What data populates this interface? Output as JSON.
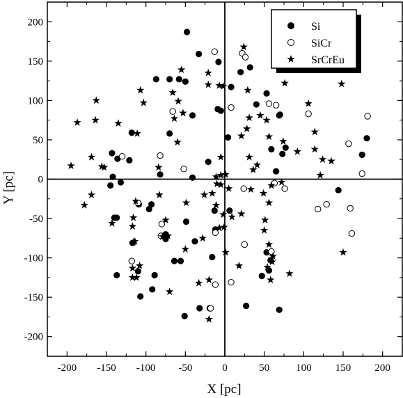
{
  "chart_data": {
    "type": "scatter",
    "title": "",
    "xlabel": "X [pc]",
    "ylabel": "Y [pc]",
    "xlim": [
      -225,
      225
    ],
    "ylim": [
      -225,
      225
    ],
    "xticks": [
      -200,
      -150,
      -100,
      -50,
      0,
      50,
      100,
      150,
      200
    ],
    "yticks": [
      -200,
      -150,
      -100,
      -50,
      0,
      50,
      100,
      150,
      200
    ],
    "xtick_labels": [
      "-200",
      "-150",
      "-100",
      "-50",
      "0",
      "50",
      "100",
      "150",
      "200"
    ],
    "ytick_labels": [
      "-200",
      "-150",
      "-100",
      "-50",
      "0",
      "50",
      "100",
      "150",
      "200"
    ],
    "zero_lines": true,
    "grid": false,
    "legend_position": "top-right",
    "series": [
      {
        "name": "Si",
        "marker": "filled-circle",
        "points": [
          [
            -48,
            187
          ],
          [
            -33,
            159
          ],
          [
            -8,
            149
          ],
          [
            32,
            142
          ],
          [
            20,
            136
          ],
          [
            -70,
            127
          ],
          [
            -87,
            127
          ],
          [
            -58,
            127
          ],
          [
            -50,
            124
          ],
          [
            8,
            117
          ],
          [
            53,
            109
          ],
          [
            -41,
            81
          ],
          [
            -5,
            87
          ],
          [
            40,
            95
          ],
          [
            70,
            82
          ],
          [
            69,
            81
          ],
          [
            -118,
            59
          ],
          [
            -70,
            58
          ],
          [
            -9,
            89
          ],
          [
            4,
            53
          ],
          [
            77,
            40
          ],
          [
            73,
            32
          ],
          [
            59,
            38
          ],
          [
            -143,
            33
          ],
          [
            -136,
            26
          ],
          [
            -121,
            24
          ],
          [
            -142,
            3
          ],
          [
            -132,
            -4
          ],
          [
            -145,
            -8
          ],
          [
            -82,
            6
          ],
          [
            -41,
            2
          ],
          [
            -21,
            22
          ],
          [
            65,
            10
          ],
          [
            -140,
            -49
          ],
          [
            -137,
            -49
          ],
          [
            -109,
            -32
          ],
          [
            -96,
            -38
          ],
          [
            -93,
            -32
          ],
          [
            -75,
            -70
          ],
          [
            -75,
            -76
          ],
          [
            -64,
            -104
          ],
          [
            -56,
            -104
          ],
          [
            -49,
            -54
          ],
          [
            -38,
            -79
          ],
          [
            -13,
            -40
          ],
          [
            -12,
            -64
          ],
          [
            -16,
            -99
          ],
          [
            6,
            -40
          ],
          [
            53,
            -93
          ],
          [
            -117,
            -81
          ],
          [
            -110,
            -117
          ],
          [
            -137,
            -122
          ],
          [
            -89,
            -122
          ],
          [
            -92,
            -140
          ],
          [
            -107,
            -149
          ],
          [
            -51,
            -174
          ],
          [
            -32,
            -164
          ],
          [
            27,
            -161
          ],
          [
            69,
            -166
          ],
          [
            47,
            -123
          ],
          [
            56,
            -116
          ],
          [
            58,
            -103
          ],
          [
            144,
            -14
          ],
          [
            180,
            52
          ],
          [
            174,
            31
          ]
        ]
      },
      {
        "name": "SiCr",
        "marker": "open-circle",
        "points": [
          [
            -13,
            162
          ],
          [
            22,
            160
          ],
          [
            26,
            155
          ],
          [
            -66,
            86
          ],
          [
            8,
            91
          ],
          [
            -82,
            30
          ],
          [
            -130,
            29
          ],
          [
            56,
            96
          ],
          [
            65,
            94
          ],
          [
            106,
            83
          ],
          [
            157,
            45
          ],
          [
            181,
            80
          ],
          [
            -52,
            13
          ],
          [
            -110,
            -30
          ],
          [
            -80,
            -57
          ],
          [
            -81,
            -72
          ],
          [
            -12,
            -68
          ],
          [
            25,
            -83
          ],
          [
            59,
            -92
          ],
          [
            -118,
            -104
          ],
          [
            -12,
            -134
          ],
          [
            8,
            -131
          ],
          [
            -19,
            -164
          ],
          [
            -18,
            -164
          ],
          [
            76,
            -12
          ],
          [
            63,
            -5
          ],
          [
            24,
            -12
          ],
          [
            118,
            -38
          ],
          [
            129,
            -32
          ],
          [
            159,
            -37
          ],
          [
            161,
            -69
          ],
          [
            174,
            7
          ]
        ]
      },
      {
        "name": "SrCrEu",
        "marker": "star",
        "points": [
          [
            24,
            168
          ],
          [
            -55,
            139
          ],
          [
            -21,
            135
          ],
          [
            -66,
            110
          ],
          [
            -21,
            120
          ],
          [
            -7,
            119
          ],
          [
            -2,
            118
          ],
          [
            29,
            113
          ],
          [
            76,
            122
          ],
          [
            148,
            121
          ],
          [
            -107,
            113
          ],
          [
            -103,
            97
          ],
          [
            -59,
            99
          ],
          [
            -163,
            100
          ],
          [
            -187,
            72
          ],
          [
            -135,
            71
          ],
          [
            -164,
            75
          ],
          [
            -156,
            16
          ],
          [
            -111,
            58
          ],
          [
            -53,
            84
          ],
          [
            -64,
            77
          ],
          [
            -60,
            47
          ],
          [
            -195,
            17
          ],
          [
            -169,
            28
          ],
          [
            -153,
            15
          ],
          [
            -84,
            15
          ],
          [
            -5,
            28
          ],
          [
            21,
            55
          ],
          [
            28,
            64
          ],
          [
            31,
            78
          ],
          [
            45,
            81
          ],
          [
            53,
            75
          ],
          [
            56,
            54
          ],
          [
            74,
            48
          ],
          [
            106,
            96
          ],
          [
            114,
            60
          ],
          [
            114,
            38
          ],
          [
            124,
            25
          ],
          [
            135,
            23
          ],
          [
            121,
            5
          ],
          [
            31,
            28
          ],
          [
            36,
            12
          ],
          [
            41,
            18
          ],
          [
            1,
            6
          ],
          [
            -11,
            3
          ],
          [
            -5,
            5
          ],
          [
            5,
            -12
          ],
          [
            -26,
            -20
          ],
          [
            -49,
            -30
          ],
          [
            -28,
            -75
          ],
          [
            -16,
            -18
          ],
          [
            -2,
            -45
          ],
          [
            -1,
            -61
          ],
          [
            21,
            -44
          ],
          [
            9,
            -48
          ],
          [
            33,
            -13
          ],
          [
            49,
            -18
          ],
          [
            56,
            -30
          ],
          [
            51,
            -52
          ],
          [
            50,
            -65
          ],
          [
            56,
            -83
          ],
          [
            61,
            -98
          ],
          [
            54,
            -112
          ],
          [
            60,
            -105
          ],
          [
            58,
            -128
          ],
          [
            82,
            -120
          ],
          [
            150,
            -93
          ],
          [
            59,
            -8
          ],
          [
            72,
            -4
          ],
          [
            92,
            35
          ],
          [
            -178,
            -33
          ],
          [
            -169,
            -20
          ],
          [
            -143,
            -56
          ],
          [
            -116,
            -49
          ],
          [
            -113,
            -28
          ],
          [
            -117,
            -60
          ],
          [
            -116,
            -80
          ],
          [
            -114,
            -79
          ],
          [
            -117,
            -125
          ],
          [
            -117,
            -113
          ],
          [
            -112,
            -125
          ],
          [
            -108,
            -110
          ],
          [
            -75,
            -52
          ],
          [
            -79,
            -73
          ],
          [
            -83,
            -20
          ],
          [
            -72,
            -72
          ],
          [
            -50,
            -89
          ],
          [
            -33,
            -132
          ],
          [
            -20,
            -178
          ],
          [
            -20,
            -128
          ],
          [
            1,
            -93
          ],
          [
            -7,
            -62
          ],
          [
            -70,
            -143
          ],
          [
            18,
            -110
          ],
          [
            -11,
            -33
          ],
          [
            -10,
            -6
          ],
          [
            -5,
            -7
          ]
        ]
      }
    ]
  }
}
